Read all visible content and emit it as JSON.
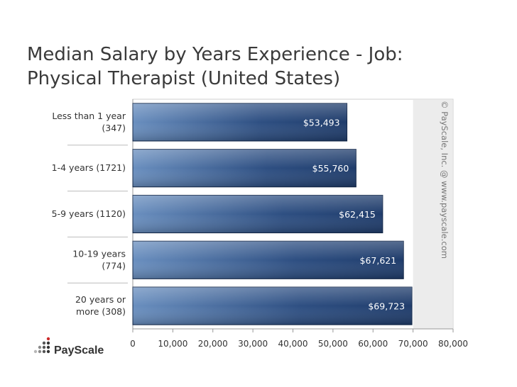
{
  "chart_data": {
    "type": "bar",
    "orientation": "horizontal",
    "title": "Median Salary by Years Experience - Job: Physical Therapist (United States)",
    "title_lines": [
      "Median Salary by Years Experience - Job:",
      "Physical Therapist (United States)"
    ],
    "categories": [
      [
        "Less than 1 year",
        "(347)"
      ],
      [
        "1-4 years (1721)"
      ],
      [
        "5-9 years (1120)"
      ],
      [
        "10-19 years",
        "(774)"
      ],
      [
        "20 years or",
        "more (308)"
      ]
    ],
    "values": [
      53493,
      55760,
      62415,
      67621,
      69723
    ],
    "value_labels": [
      "$53,493",
      "$55,760",
      "$62,415",
      "$67,621",
      "$69,723"
    ],
    "xlim": [
      0,
      80000
    ],
    "xticks": [
      0,
      10000,
      20000,
      30000,
      40000,
      50000,
      60000,
      70000,
      80000
    ],
    "xtick_labels": [
      "0",
      "10,000",
      "20,000",
      "30,000",
      "40,000",
      "50,000",
      "60,000",
      "70,000",
      "80,000"
    ],
    "shaded_band": [
      70000,
      80000
    ],
    "bar_color": "#1f3c6b",
    "bar_color_light": "#6a8fbf",
    "band_color": "#ececec"
  },
  "watermark": "© PayScale, Inc. @ www.payscale.com",
  "logo": {
    "name": "payscale-logo",
    "text": "PayScale"
  }
}
